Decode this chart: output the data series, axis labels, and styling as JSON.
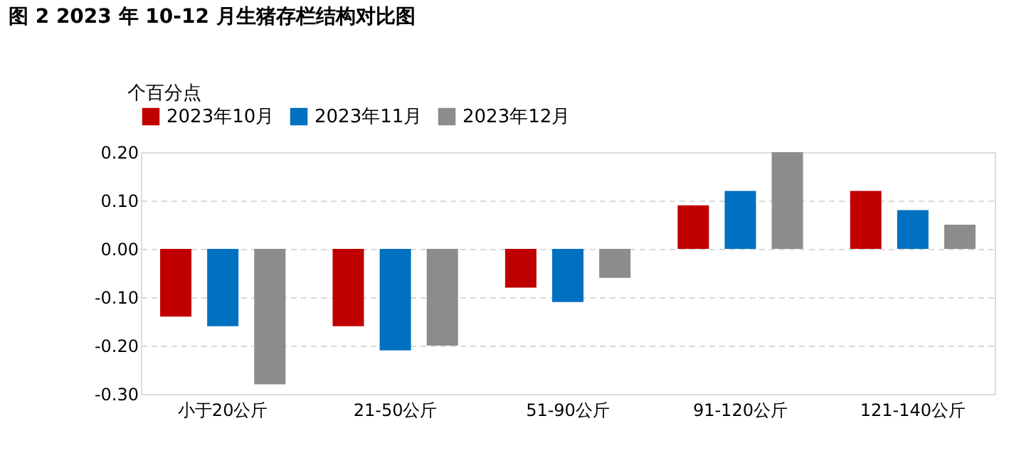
{
  "chart_data": {
    "type": "bar",
    "title": "图 2 2023 年 10-12 月生猪存栏结构对比图",
    "ylabel": "个百分点",
    "categories": [
      "小于20公斤",
      "21-50公斤",
      "51-90公斤",
      "91-120公斤",
      "121-140公斤"
    ],
    "series": [
      {
        "name": "2023年10月",
        "color": "#c00000",
        "values": [
          -0.14,
          -0.16,
          -0.08,
          0.09,
          0.12
        ]
      },
      {
        "name": "2023年11月",
        "color": "#0070c0",
        "values": [
          -0.16,
          -0.21,
          -0.11,
          0.12,
          0.08
        ]
      },
      {
        "name": "2023年12月",
        "color": "#8c8c8c",
        "values": [
          -0.28,
          -0.2,
          -0.06,
          0.2,
          0.05
        ]
      }
    ],
    "ylim": [
      -0.3,
      0.2
    ],
    "yticks": [
      {
        "value": 0.2,
        "label": "0.20"
      },
      {
        "value": 0.1,
        "label": "0.10"
      },
      {
        "value": 0,
        "label": "0.00"
      },
      {
        "value": -0.1,
        "label": "-0.10"
      },
      {
        "value": -0.2,
        "label": "-0.20"
      },
      {
        "value": -0.3,
        "label": "-0.30"
      }
    ],
    "grid": "y",
    "legend": "top"
  }
}
